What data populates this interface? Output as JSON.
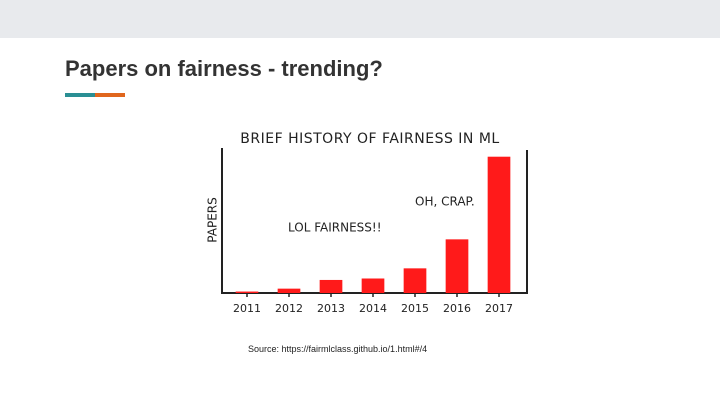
{
  "slide": {
    "title": "Papers on fairness - trending?",
    "source": "Source: https://fairmlclass.github.io/1.html#/4"
  },
  "chart_data": {
    "type": "bar",
    "title": "BRIEF HISTORY OF FAIRNESS IN ML",
    "y_label": "PAPERS",
    "annotations": [
      "LOL FAIRNESS!!",
      "OH, CRAP."
    ],
    "categories": [
      "2011",
      "2012",
      "2013",
      "2014",
      "2015",
      "2016",
      "2017"
    ],
    "values": [
      1,
      3,
      9,
      10,
      17,
      37,
      94
    ],
    "color": "#ff1a1a",
    "ylim": [
      0,
      100
    ]
  }
}
